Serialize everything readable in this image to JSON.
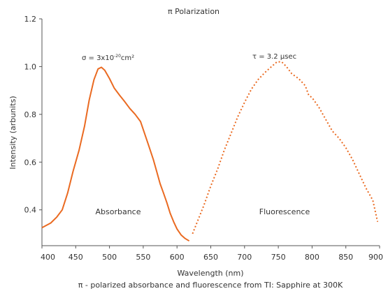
{
  "chart_data": {
    "type": "line",
    "title": "π Polarization",
    "xlabel": "Wavelength (nm)",
    "ylabel": "Intensity (arbunits)",
    "caption": "π - polarized absorbance and fluorescence from TI: Sapphire at 300K",
    "xlim": [
      400,
      900
    ],
    "ylim": [
      0.25,
      1.2
    ],
    "xticks": [
      "400",
      "450",
      "500",
      "550",
      "600",
      "650",
      "700",
      "750",
      "800",
      "850",
      "900"
    ],
    "yticks": [
      "0.4",
      "0.6",
      "0.8",
      "1.0",
      "1.2"
    ],
    "grid": false,
    "series": [
      {
        "name": "Absorbance",
        "style": "solid",
        "color": "#ea6a21",
        "x": [
          400,
          413,
          422,
          430,
          438,
          446,
          455,
          463,
          470,
          477,
          483,
          488,
          493,
          500,
          507,
          515,
          522,
          530,
          538,
          546,
          552,
          558,
          565,
          570,
          575,
          580,
          585,
          590,
          595,
          600,
          606,
          612,
          618
        ],
        "y": [
          0.325,
          0.345,
          0.37,
          0.4,
          0.47,
          0.56,
          0.65,
          0.75,
          0.86,
          0.945,
          0.99,
          0.997,
          0.985,
          0.95,
          0.91,
          0.88,
          0.855,
          0.825,
          0.8,
          0.77,
          0.72,
          0.67,
          0.61,
          0.56,
          0.51,
          0.47,
          0.43,
          0.385,
          0.35,
          0.32,
          0.295,
          0.28,
          0.27
        ]
      },
      {
        "name": "Fluorescence",
        "style": "dotted",
        "color": "#ea6a21",
        "x": [
          623,
          630,
          640,
          650,
          660,
          670,
          680,
          690,
          700,
          710,
          720,
          730,
          740,
          748,
          755,
          762,
          770,
          780,
          790,
          795,
          800,
          810,
          820,
          830,
          840,
          850,
          860,
          870,
          880,
          890,
          897
        ],
        "y": [
          0.3,
          0.35,
          0.42,
          0.5,
          0.57,
          0.65,
          0.72,
          0.79,
          0.85,
          0.905,
          0.945,
          0.975,
          1.0,
          1.02,
          1.02,
          1.0,
          0.97,
          0.95,
          0.92,
          0.88,
          0.87,
          0.83,
          0.78,
          0.73,
          0.7,
          0.66,
          0.61,
          0.55,
          0.49,
          0.44,
          0.35
        ]
      }
    ],
    "annotations": {
      "sigma": "σ = 3x10",
      "sigma_exp": "-20",
      "sigma_unit": "cm²",
      "tau": "τ = 3.2 μsec"
    }
  }
}
